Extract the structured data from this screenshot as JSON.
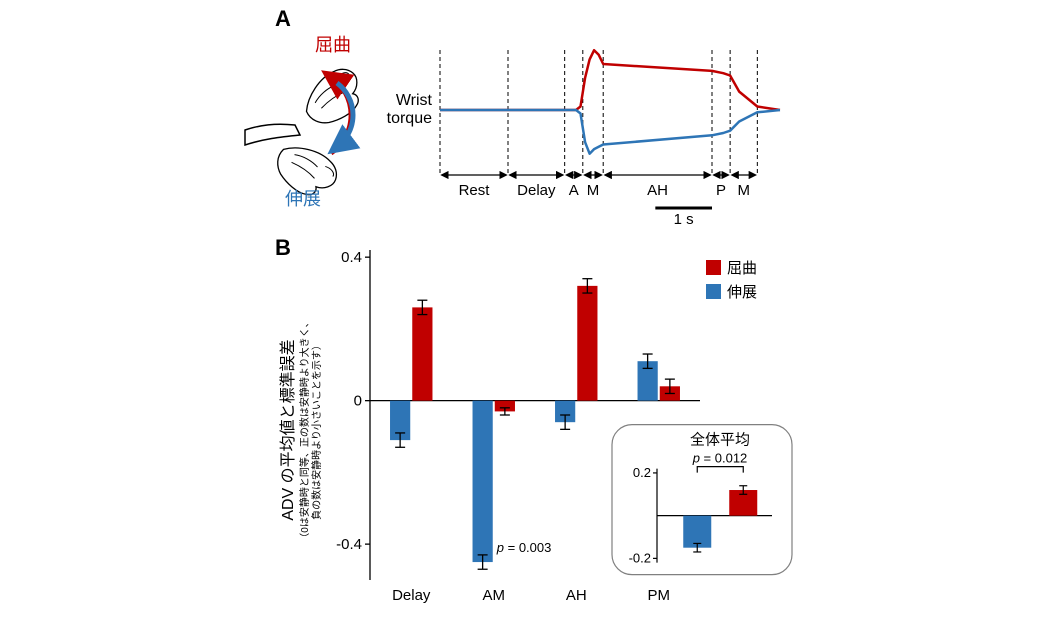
{
  "figure": {
    "background_color": "#ffffff"
  },
  "panelA": {
    "label": "A",
    "label_fontsize": 22,
    "label_color": "#000000",
    "hand_diagram": {
      "flexion_label": "屈曲",
      "flexion_color": "#c00000",
      "extension_label": "伸展",
      "extension_color": "#2e75b6",
      "label_fontsize": 18
    },
    "y_axis_label": "Wrist torque",
    "y_axis_label_color": "#000000",
    "y_axis_label_fontsize": 16,
    "curve_colors": {
      "flexion": "#c00000",
      "extension": "#2e75b6"
    },
    "line_width": 2.5,
    "curves": {
      "x": [
        0,
        30,
        55,
        60,
        62,
        64,
        66,
        68,
        70,
        72,
        120,
        125,
        128,
        132,
        140,
        150
      ],
      "flexion_y": [
        0,
        0,
        0,
        0,
        3,
        28,
        44,
        52,
        48,
        40,
        34,
        32,
        30,
        16,
        3,
        0
      ],
      "extension_y": [
        0,
        0,
        0,
        0,
        -3,
        -28,
        -38,
        -34,
        -32,
        -30,
        -22,
        -20,
        -18,
        -10,
        -2,
        0
      ]
    },
    "epoch_boundaries_x": [
      0,
      30,
      55,
      63,
      72,
      120,
      128,
      140
    ],
    "epoch_labels": [
      "Rest",
      "Delay",
      "AM",
      "AH",
      "PM"
    ],
    "epoch_label_fontsize": 15,
    "dash_color": "#000000",
    "dash_pattern": "4 3",
    "scalebar": {
      "length_x": 25,
      "label": "1 s",
      "label_fontsize": 15
    }
  },
  "panelB": {
    "label": "B",
    "label_fontsize": 22,
    "label_color": "#000000",
    "y_axis_label_main": "ADV の平均値と標準誤差",
    "y_axis_label_sub": "（0は安静時と同等、正の数は安静時より大きく、\n負の数は安静時より小さいことを示す）",
    "y_axis_label_fontsize_main": 16,
    "y_axis_label_fontsize_sub": 10,
    "ylim": [
      -0.5,
      0.42
    ],
    "yticks": [
      -0.4,
      0,
      0.4
    ],
    "tick_fontsize": 15,
    "axis_color": "#000000",
    "xtick_labels": [
      "Delay",
      "AM",
      "AH",
      "PM"
    ],
    "xtick_fontsize": 15,
    "bar_width": 0.35,
    "colors": {
      "flexion": "#c00000",
      "extension": "#2e75b6",
      "error_bar": "#000000"
    },
    "legend": {
      "flexion": "屈曲",
      "extension": "伸展",
      "fontsize": 15
    },
    "data": [
      {
        "epoch": "Delay",
        "ext": -0.11,
        "ext_err": 0.02,
        "flex": 0.26,
        "flex_err": 0.02
      },
      {
        "epoch": "AM",
        "ext": -0.45,
        "ext_err": 0.02,
        "flex": -0.03,
        "flex_err": 0.01
      },
      {
        "epoch": "AH",
        "ext": -0.06,
        "ext_err": 0.02,
        "flex": 0.32,
        "flex_err": 0.02
      },
      {
        "epoch": "PM",
        "ext": 0.11,
        "ext_err": 0.02,
        "flex": 0.04,
        "flex_err": 0.02
      }
    ],
    "p_annotation": {
      "text": "p = 0.003",
      "fontsize": 13,
      "italic_first_letter": true
    },
    "inset": {
      "title": "全体平均",
      "title_fontsize": 15,
      "p_text": "p = 0.012",
      "p_fontsize": 13,
      "ylim": [
        -0.22,
        0.22
      ],
      "yticks": [
        -0.2,
        0.2
      ],
      "data": {
        "ext": -0.15,
        "ext_err": 0.02,
        "flex": 0.12,
        "flex_err": 0.02
      },
      "border_color": "#808080",
      "border_width": 1.2,
      "border_radius": 20
    }
  }
}
